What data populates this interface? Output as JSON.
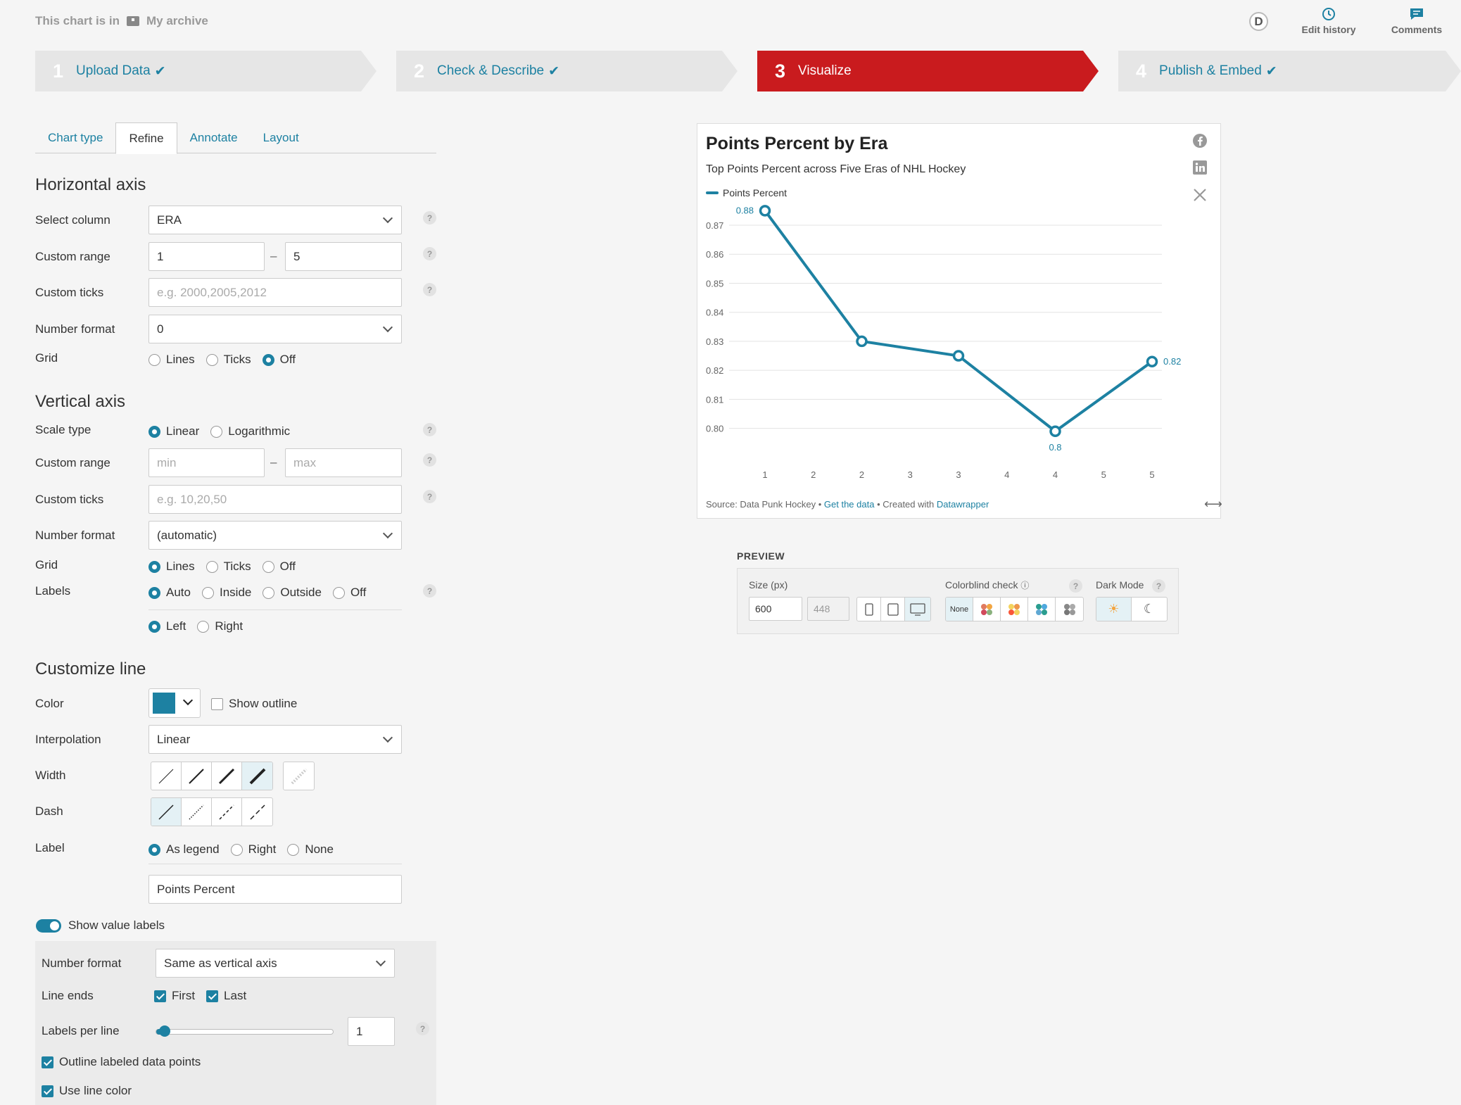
{
  "archive": {
    "prefix": "This chart is in",
    "name": "My archive"
  },
  "user": {
    "initial": "D"
  },
  "header_buttons": {
    "edit_history": "Edit history",
    "comments": "Comments"
  },
  "steps": [
    {
      "num": "1",
      "label": "Upload Data",
      "done": true
    },
    {
      "num": "2",
      "label": "Check & Describe",
      "done": true
    },
    {
      "num": "3",
      "label": "Visualize",
      "done": false
    },
    {
      "num": "4",
      "label": "Publish & Embed",
      "done": true
    }
  ],
  "checkmark": "✔",
  "tabs": [
    "Chart type",
    "Refine",
    "Annotate",
    "Layout"
  ],
  "horizontal_axis": {
    "title": "Horizontal axis",
    "select_column_label": "Select column",
    "select_column_value": "ERA",
    "custom_range_label": "Custom range",
    "range_min": "1",
    "range_max": "5",
    "custom_ticks_label": "Custom ticks",
    "custom_ticks_placeholder": "e.g. 2000,2005,2012",
    "number_format_label": "Number format",
    "number_format_value": "0",
    "grid_label": "Grid",
    "grid_options": [
      "Lines",
      "Ticks",
      "Off"
    ],
    "grid_selected": "Off"
  },
  "vertical_axis": {
    "title": "Vertical axis",
    "scale_type_label": "Scale type",
    "scale_options": [
      "Linear",
      "Logarithmic"
    ],
    "scale_selected": "Linear",
    "custom_range_label": "Custom range",
    "range_min_placeholder": "min",
    "range_max_placeholder": "max",
    "custom_ticks_label": "Custom ticks",
    "custom_ticks_placeholder": "e.g. 10,20,50",
    "number_format_label": "Number format",
    "number_format_value": "(automatic)",
    "grid_label": "Grid",
    "grid_options": [
      "Lines",
      "Ticks",
      "Off"
    ],
    "grid_selected": "Lines",
    "labels_label": "Labels",
    "labels_options": [
      "Auto",
      "Inside",
      "Outside",
      "Off"
    ],
    "labels_selected": "Auto",
    "side_options": [
      "Left",
      "Right"
    ],
    "side_selected": "Left"
  },
  "customize_line": {
    "title": "Customize line",
    "color_label": "Color",
    "color_value": "#1d81a2",
    "show_outline_label": "Show outline",
    "interpolation_label": "Interpolation",
    "interpolation_value": "Linear",
    "width_label": "Width",
    "dash_label": "Dash",
    "label_label": "Label",
    "label_options": [
      "As legend",
      "Right",
      "None"
    ],
    "label_selected": "As legend",
    "label_text": "Points Percent",
    "show_value_labels": "Show value labels"
  },
  "value_labels": {
    "number_format_label": "Number format",
    "number_format_value": "Same as vertical axis",
    "line_ends_label": "Line ends",
    "first_label": "First",
    "last_label": "Last",
    "labels_per_line_label": "Labels per line",
    "labels_per_line_value": "1",
    "outline_label": "Outline labeled data points",
    "use_line_color_label": "Use line color"
  },
  "chart": {
    "title": "Points Percent by Era",
    "subtitle": "Top Points Percent across Five Eras of NHL Hockey",
    "source_prefix": "Source: Data Punk Hockey",
    "get_data": "Get the data",
    "created_with": "Created with",
    "datawrapper": "Datawrapper",
    "bullet": "•"
  },
  "chart_data": {
    "type": "line",
    "series": [
      {
        "name": "Points Percent",
        "color": "#1d81a2",
        "values": [
          0.875,
          0.83,
          0.825,
          0.799,
          0.823
        ]
      }
    ],
    "x": [
      1,
      2,
      3,
      4,
      5
    ],
    "x_tick_labels": [
      "1",
      "2",
      "2",
      "3",
      "3",
      "4",
      "4",
      "5",
      "5"
    ],
    "x_ticks": [
      1,
      1.5,
      2,
      2.5,
      3,
      3.5,
      4,
      4.5,
      5
    ],
    "y_ticks": [
      0.8,
      0.81,
      0.82,
      0.83,
      0.84,
      0.85,
      0.86,
      0.87
    ],
    "y_tick_labels": [
      "0.80",
      "0.81",
      "0.82",
      "0.83",
      "0.84",
      "0.85",
      "0.86",
      "0.87"
    ],
    "ylim": [
      0.797,
      0.878
    ],
    "value_labels": [
      {
        "i": 0,
        "text": "0.88"
      },
      {
        "i": 3,
        "text": "0.8"
      },
      {
        "i": 4,
        "text": "0.82"
      }
    ],
    "grid": "horizontal lines",
    "legend": "top-left"
  },
  "preview": {
    "title": "PREVIEW",
    "size_label": "Size (px)",
    "width": "600",
    "height": "448",
    "colorblind_label": "Colorblind check",
    "none_label": "None",
    "dark_mode_label": "Dark Mode"
  }
}
